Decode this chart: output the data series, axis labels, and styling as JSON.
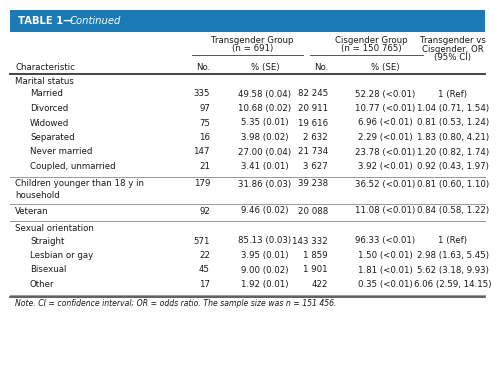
{
  "header_bg": "#1b7ab5",
  "header_text_color": "white",
  "bg_color": "white",
  "text_color": "#1a1a1a",
  "section_color": "#1a1a1a",
  "line_color": "#555555",
  "font_size": 6.2,
  "title_font_size": 7.2,
  "note_font_size": 5.6,
  "sections": [
    {
      "name": "Marital status",
      "is_header_only": false,
      "multiline": false,
      "rows": [
        [
          "Married",
          "335",
          "49.58 (0.04)",
          "82 245",
          "52.28 (<0.01)",
          "1 (Ref)"
        ],
        [
          "Divorced",
          "97",
          "10.68 (0.02)",
          "20 911",
          "10.77 (<0.01)",
          "1.04 (0.71, 1.54)"
        ],
        [
          "Widowed",
          "75",
          "5.35 (0.01)",
          "19 616",
          "6.96 (<0.01)",
          "0.81 (0.53, 1.24)"
        ],
        [
          "Separated",
          "16",
          "3.98 (0.02)",
          "2 632",
          "2.29 (<0.01)",
          "1.83 (0.80, 4.21)"
        ],
        [
          "Never married",
          "147",
          "27.00 (0.04)",
          "21 734",
          "23.78 (<0.01)",
          "1.20 (0.82, 1.74)"
        ],
        [
          "Coupled, unmarried",
          "21",
          "3.41 (0.01)",
          "3 627",
          "3.92 (<0.01)",
          "0.92 (0.43, 1.97)"
        ]
      ]
    },
    {
      "name": "Children younger than 18 y in\nhousehold",
      "is_header_only": true,
      "multiline": true,
      "rows": [
        [
          "",
          "179",
          "31.86 (0.03)",
          "39 238",
          "36.52 (<0.01)",
          "0.81 (0.60, 1.10)"
        ]
      ]
    },
    {
      "name": "Veteran",
      "is_header_only": true,
      "multiline": false,
      "rows": [
        [
          "",
          "92",
          "9.46 (0.02)",
          "20 088",
          "11.08 (<0.01)",
          "0.84 (0.58, 1.22)"
        ]
      ]
    },
    {
      "name": "Sexual orientation",
      "is_header_only": false,
      "multiline": false,
      "rows": [
        [
          "Straight",
          "571",
          "85.13 (0.03)",
          "143 332",
          "96.33 (<0.01)",
          "1 (Ref)"
        ],
        [
          "Lesbian or gay",
          "22",
          "3.95 (0.01)",
          "1 859",
          "1.50 (<0.01)",
          "2.98 (1.63, 5.45)"
        ],
        [
          "Bisexual",
          "45",
          "9.00 (0.02)",
          "1 901",
          "1.81 (<0.01)",
          "5.62 (3.18, 9.93)"
        ],
        [
          "Other",
          "17",
          "1.92 (0.01)",
          "422",
          "0.35 (<0.01)",
          "6.06 (2.59, 14.15)"
        ]
      ]
    }
  ],
  "note": "Note. CI = confidence interval; OR = odds ratio. The sample size was n = 151 456."
}
